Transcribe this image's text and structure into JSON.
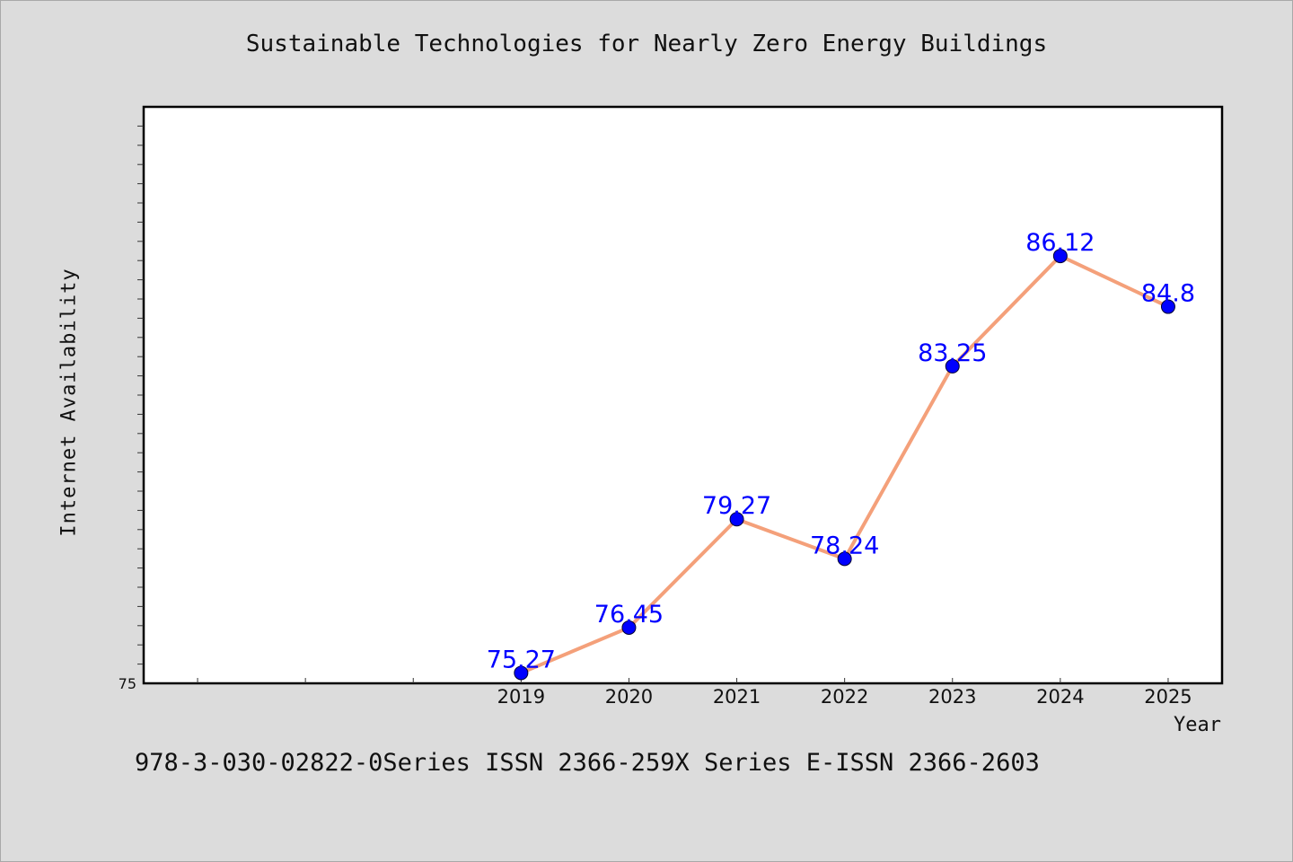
{
  "chart_data": {
    "type": "line",
    "title": "Sustainable Technologies for Nearly Zero Energy Buildings",
    "xlabel": "Year",
    "ylabel": "Internet Availability",
    "x": [
      "2019",
      "2020",
      "2021",
      "2022",
      "2023",
      "2024",
      "2025"
    ],
    "series": [
      {
        "values": [
          75.27,
          76.45,
          79.27,
          78.24,
          83.25,
          86.12,
          84.8
        ]
      }
    ],
    "data_labels": [
      "75.27",
      "76.45",
      "79.27",
      "78.24",
      "83.25",
      "86.12",
      "84.8"
    ],
    "y_tick_labels": [
      "75"
    ],
    "ylim": [
      75,
      90
    ],
    "xlim": [
      2015.5,
      2025.5
    ],
    "grid": false,
    "line_color": "#f4a07a",
    "marker_color": "#0000ff",
    "label_color": "#0000ff"
  },
  "footer": "978-3-030-02822-0Series ISSN 2366-259X Series E-ISSN 2366-2603"
}
